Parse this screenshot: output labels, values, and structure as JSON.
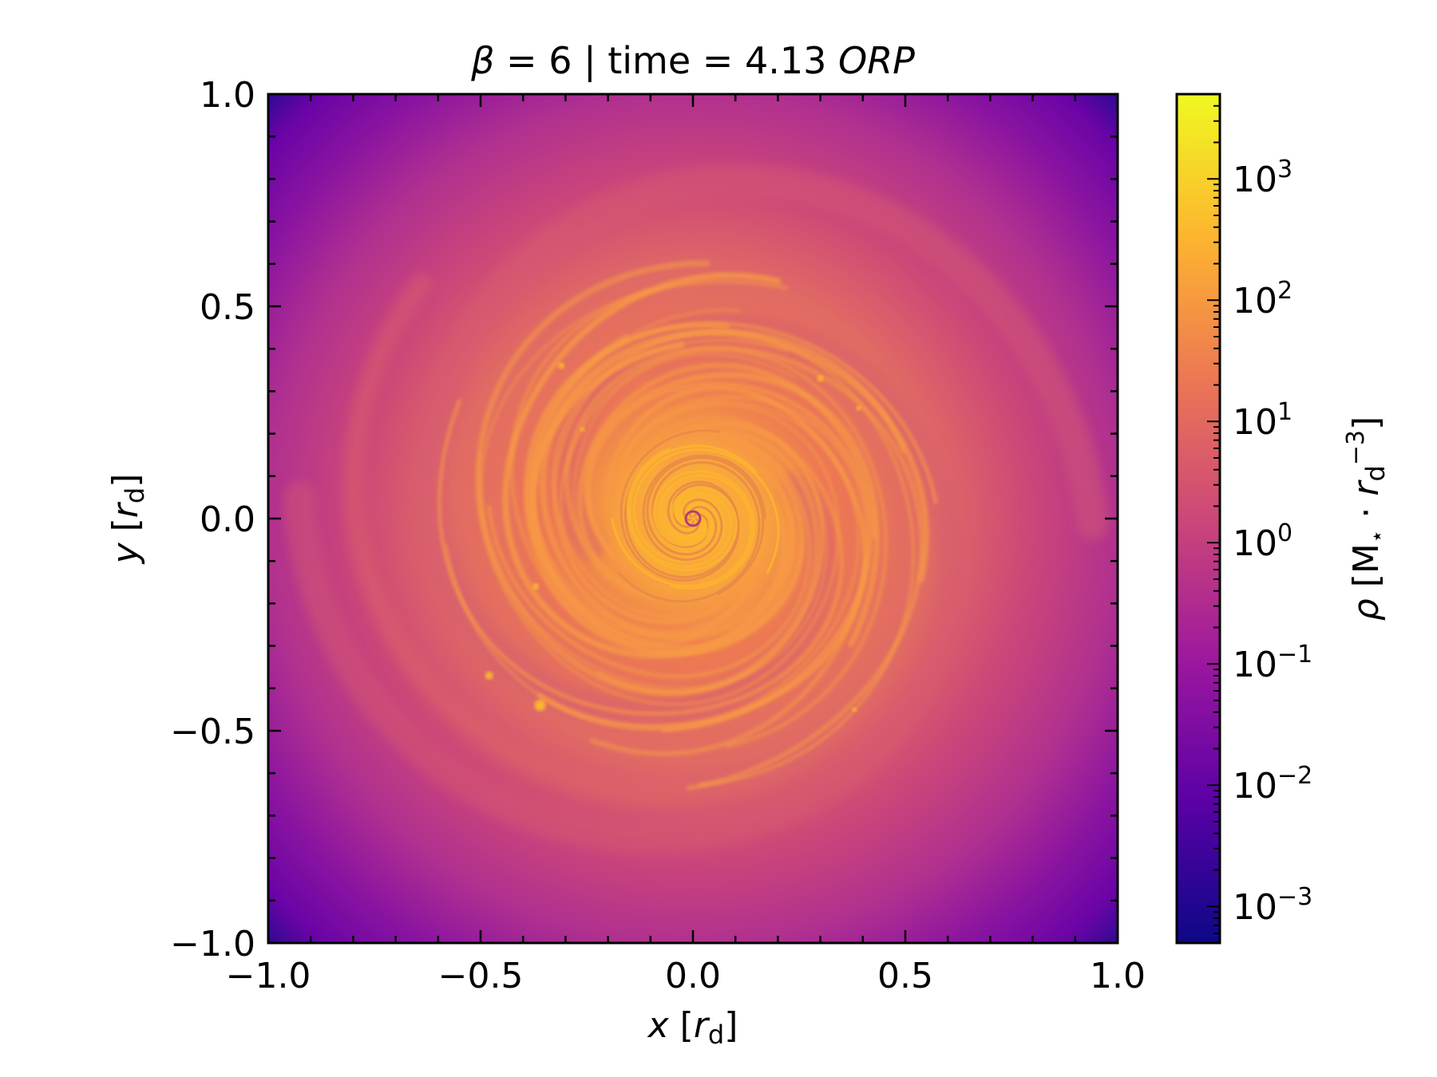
{
  "chart_data": {
    "type": "heatmap",
    "title": {
      "symbol": "β",
      "text": " = 6 | time = 4.13 ",
      "unit": "ORP"
    },
    "xlabel": {
      "var": "x",
      "pre": " [",
      "sym": "r",
      "sub": "d",
      "post": "]"
    },
    "ylabel": {
      "var": "y",
      "pre": " [",
      "sym": "r",
      "sub": "d",
      "post": "]"
    },
    "xlim": [
      -1.0,
      1.0
    ],
    "ylim": [
      -1.0,
      1.0
    ],
    "xticks": [
      -1.0,
      -0.5,
      0.0,
      0.5,
      1.0
    ],
    "yticks": [
      -1.0,
      -0.5,
      0.0,
      0.5,
      1.0
    ],
    "xtick_labels": [
      "−1.0",
      "−0.5",
      "0.0",
      "0.5",
      "1.0"
    ],
    "ytick_labels": [
      "−1.0",
      "−0.5",
      "0.0",
      "0.5",
      "1.0"
    ],
    "colormap": "plasma",
    "colorbar": {
      "scale": "log",
      "range": [
        0.0005,
        5000
      ],
      "ticks": [
        {
          "exp": -3,
          "base": "10",
          "sup": "−3"
        },
        {
          "exp": -2,
          "base": "10",
          "sup": "−2"
        },
        {
          "exp": -1,
          "base": "10",
          "sup": "−1"
        },
        {
          "exp": 0,
          "base": "10",
          "sup": "0"
        },
        {
          "exp": 1,
          "base": "10",
          "sup": "1"
        },
        {
          "exp": 2,
          "base": "10",
          "sup": "2"
        },
        {
          "exp": 3,
          "base": "10",
          "sup": "3"
        }
      ],
      "label": {
        "sym": "ρ",
        "open": " [M",
        "star": "⋆",
        "dot": " · ",
        "r": "r",
        "sub": "d",
        "sup": "−3",
        "close": "]"
      },
      "colors": [
        "#0d0887",
        "#5c01a6",
        "#9c179e",
        "#cc4778",
        "#ed7953",
        "#fdb42f",
        "#f0f921"
      ]
    },
    "field_description_values": {
      "outer_corner_log_rho": -3.0,
      "outer_disk_log_rho": -1.3,
      "mid_disk_log_rho": -0.6,
      "spiral_arm_log_rho": 1.0,
      "inner_core_log_rho": 2.2,
      "spiral_handedness": "counter-clockwise winding toward center"
    }
  }
}
